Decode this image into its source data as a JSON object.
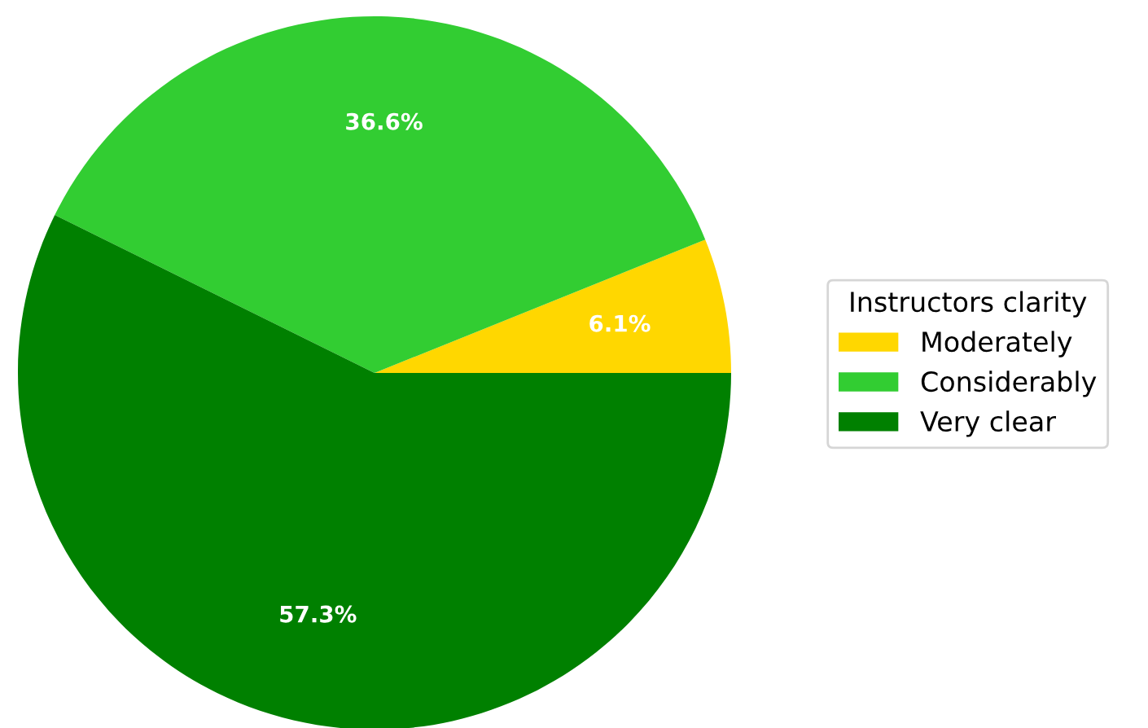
{
  "chart_data": {
    "type": "pie",
    "legend_title": "Instructors clarity",
    "categories": [
      "Moderately",
      "Considerably",
      "Very clear"
    ],
    "values": [
      6.1,
      36.6,
      57.3
    ],
    "colors": [
      "#ffd700",
      "#32cd32",
      "#008000"
    ],
    "value_labels": [
      "6.1%",
      "36.6%",
      "57.3%"
    ],
    "legend": "right"
  }
}
